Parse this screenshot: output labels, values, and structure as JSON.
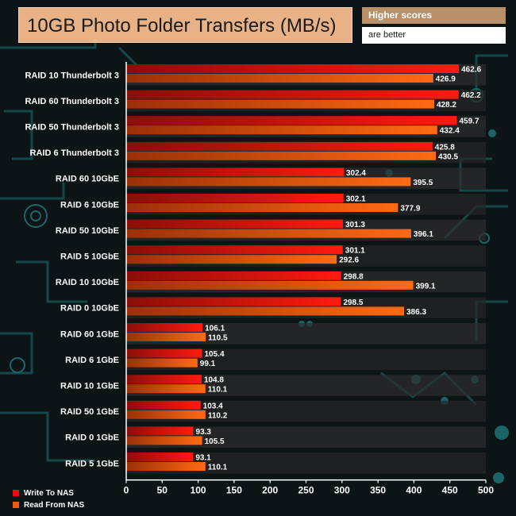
{
  "header": {
    "title": "10GB Photo Folder Transfers (MB/s)",
    "note_line1": "Higher scores",
    "note_line2": "are better"
  },
  "colors": {
    "write": "#e3120f",
    "read": "#ee5a10",
    "title_bg": "#e8b286",
    "note_bg": "#b9906a",
    "background": "#0d1416",
    "circuit": "#1a5a5c"
  },
  "chart_data": {
    "type": "bar",
    "orientation": "horizontal",
    "title": "10GB Photo Folder Transfers (MB/s)",
    "categories": [
      "RAID 10 Thunderbolt 3",
      "RAID 60 Thunderbolt 3",
      "RAID 50 Thunderbolt 3",
      "RAID 6 Thunderbolt 3",
      "RAID 60 10GbE",
      "RAID 6 10GbE",
      "RAID 50 10GbE",
      "RAID 5 10GbE",
      "RAID 10 10GbE",
      "RAID 0 10GbE",
      "RAID 60 1GbE",
      "RAID 6 1GbE",
      "RAID 10 1GbE",
      "RAID 50 1GbE",
      "RAID 0 1GbE",
      "RAID 5 1GbE"
    ],
    "series": [
      {
        "name": "Write To NAS",
        "values": [
          462.6,
          462.2,
          459.7,
          425.8,
          302.4,
          302.1,
          301.3,
          301.1,
          298.8,
          298.5,
          106.1,
          105.4,
          104.8,
          103.4,
          93.3,
          93.1
        ]
      },
      {
        "name": "Read From NAS",
        "values": [
          426.9,
          428.2,
          432.4,
          430.5,
          395.5,
          377.9,
          396.1,
          292.6,
          399.1,
          386.3,
          110.5,
          99.1,
          110.1,
          110.2,
          105.5,
          110.1
        ]
      }
    ],
    "xlim": [
      0,
      500
    ],
    "xticks": [
      "0",
      "50",
      "100",
      "150",
      "200",
      "250",
      "300",
      "350",
      "400",
      "450",
      "500"
    ],
    "legend_position": "bottom-left",
    "grid": false
  }
}
